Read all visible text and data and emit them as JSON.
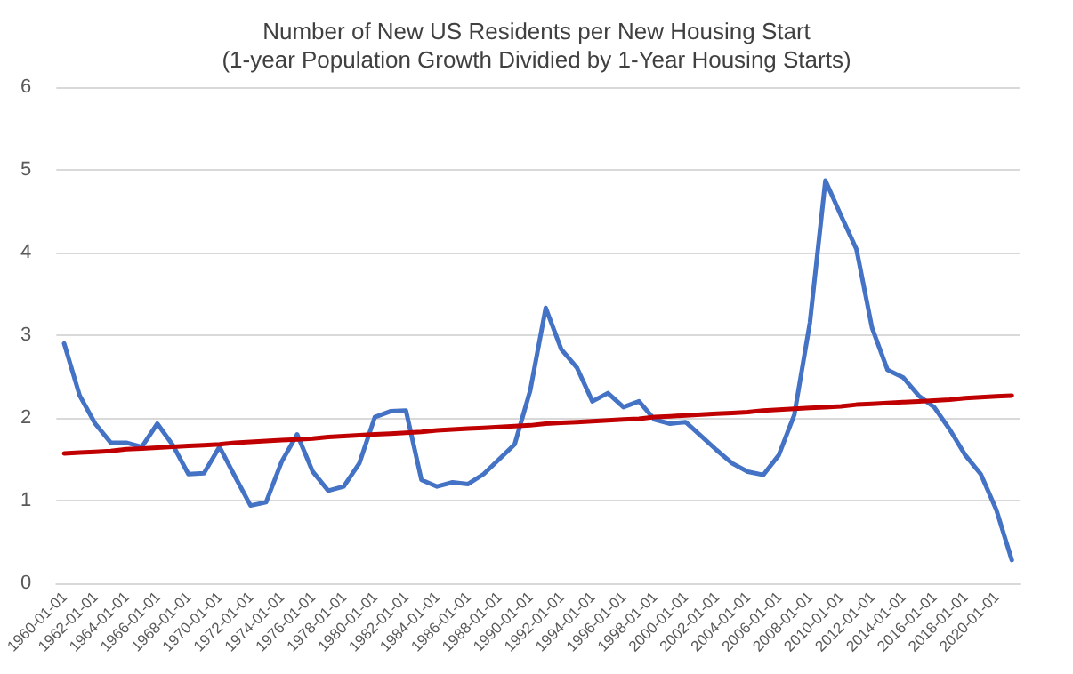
{
  "chart_data": {
    "type": "line",
    "title": "Number of New US Residents per New Housing Start",
    "subtitle": "(1-year Population Growth Dividied by 1-Year Housing Starts)",
    "categories": [
      "1960-01-01",
      null,
      "1962-01-01",
      null,
      "1964-01-01",
      null,
      "1966-01-01",
      null,
      "1968-01-01",
      null,
      "1970-01-01",
      null,
      "1972-01-01",
      null,
      "1974-01-01",
      null,
      "1976-01-01",
      null,
      "1978-01-01",
      null,
      "1980-01-01",
      null,
      "1982-01-01",
      null,
      "1984-01-01",
      null,
      "1986-01-01",
      null,
      "1988-01-01",
      null,
      "1990-01-01",
      null,
      "1992-01-01",
      null,
      "1994-01-01",
      null,
      "1996-01-01",
      null,
      "1998-01-01",
      null,
      "2000-01-01",
      null,
      "2002-01-01",
      null,
      "2004-01-01",
      null,
      "2006-01-01",
      null,
      "2008-01-01",
      null,
      "2010-01-01",
      null,
      "2012-01-01",
      null,
      "2014-01-01",
      null,
      "2016-01-01",
      null,
      "2018-01-01",
      null,
      "2020-01-01",
      null
    ],
    "series": [
      {
        "color": "#4472c4",
        "values": [
          2.9,
          2.27,
          1.93,
          1.7,
          1.7,
          1.65,
          1.93,
          1.67,
          1.32,
          1.33,
          1.65,
          1.29,
          0.94,
          0.98,
          1.47,
          1.8,
          1.35,
          1.12,
          1.17,
          1.45,
          2.01,
          2.08,
          2.09,
          1.25,
          1.17,
          1.22,
          1.2,
          1.32,
          1.5,
          1.68,
          2.33,
          3.33,
          2.83,
          2.61,
          2.2,
          2.3,
          2.13,
          2.2,
          1.98,
          1.93,
          1.95,
          1.78,
          1.61,
          1.45,
          1.35,
          1.31,
          1.55,
          2.04,
          3.15,
          4.87,
          4.45,
          4.04,
          3.09,
          2.58,
          2.49,
          2.27,
          2.13,
          1.86,
          1.55,
          1.32,
          0.89,
          0.28
        ]
      },
      {
        "type": "line",
        "color": "#c00000",
        "values": [
          1.57,
          1.58,
          1.59,
          1.6,
          1.62,
          1.63,
          1.64,
          1.65,
          1.66,
          1.67,
          1.68,
          1.7,
          1.71,
          1.72,
          1.73,
          1.74,
          1.75,
          1.77,
          1.78,
          1.79,
          1.8,
          1.81,
          1.82,
          1.83,
          1.85,
          1.86,
          1.87,
          1.88,
          1.89,
          1.9,
          1.91,
          1.93,
          1.94,
          1.95,
          1.96,
          1.97,
          1.98,
          1.99,
          2.01,
          2.02,
          2.03,
          2.04,
          2.05,
          2.06,
          2.07,
          2.09,
          2.1,
          2.11,
          2.12,
          2.13,
          2.14,
          2.16,
          2.17,
          2.18,
          2.19,
          2.2,
          2.21,
          2.22,
          2.24,
          2.25,
          2.26,
          2.27
        ]
      }
    ],
    "ylim": [
      0,
      6
    ],
    "yticks": [
      0,
      1,
      2,
      3,
      4,
      5,
      6
    ],
    "grid": "y",
    "marker": "none",
    "line_style": "solid"
  }
}
